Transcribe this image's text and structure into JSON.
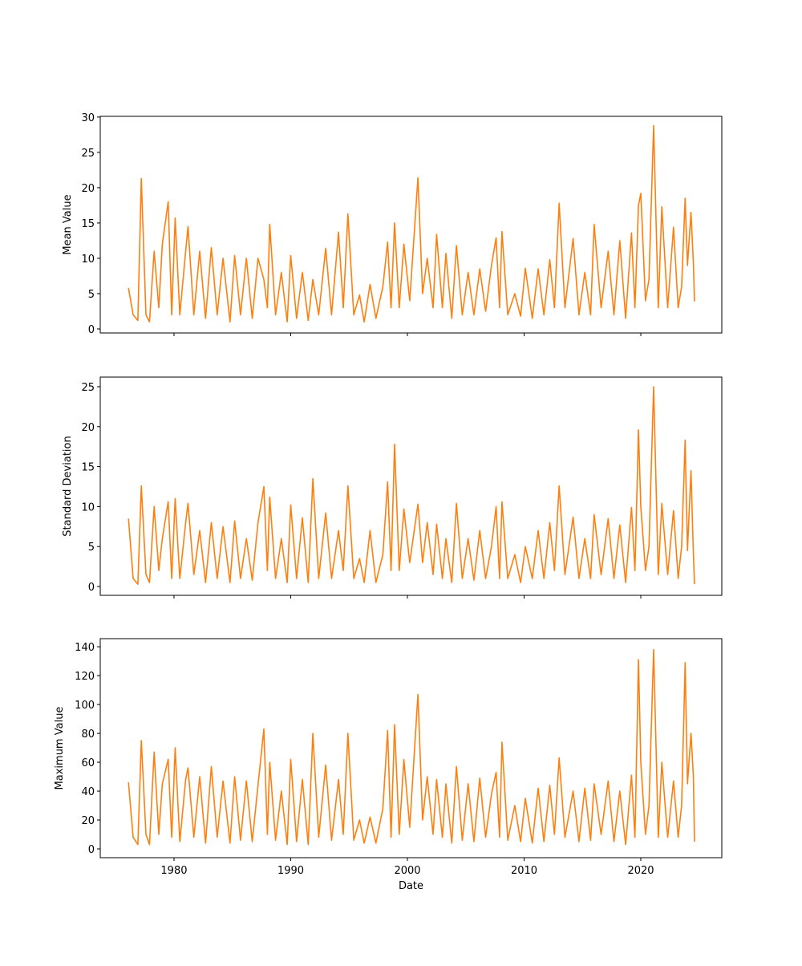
{
  "chart_data": [
    {
      "type": "line",
      "ylabel": "Mean Value",
      "xlim": [
        1973.68,
        2026.94
      ],
      "xticks": [
        1980,
        1990,
        2000,
        2010,
        2020
      ],
      "ylim": [
        -0.57,
        30.1
      ],
      "yticks": [
        0,
        5,
        10,
        15,
        20,
        25,
        30
      ],
      "x": [
        1976.1,
        1976.5,
        1976.9,
        1977.2,
        1977.6,
        1977.9,
        1978.3,
        1978.7,
        1979.0,
        1979.5,
        1979.8,
        1980.1,
        1980.5,
        1981.0,
        1981.2,
        1981.7,
        1982.2,
        1982.7,
        1983.2,
        1983.7,
        1984.2,
        1984.8,
        1985.2,
        1985.7,
        1986.2,
        1986.7,
        1987.2,
        1987.7,
        1988.0,
        1988.2,
        1988.7,
        1989.2,
        1989.7,
        1990.0,
        1990.5,
        1991.0,
        1991.5,
        1991.9,
        1992.4,
        1993.0,
        1993.5,
        1994.1,
        1994.5,
        1994.9,
        1995.4,
        1995.9,
        1996.3,
        1996.8,
        1997.3,
        1997.9,
        1998.3,
        1998.6,
        1998.9,
        1999.3,
        1999.7,
        2000.2,
        2000.9,
        2001.3,
        2001.7,
        2002.2,
        2002.5,
        2003.0,
        2003.3,
        2003.8,
        2004.2,
        2004.7,
        2005.2,
        2005.7,
        2006.2,
        2006.7,
        2007.2,
        2007.6,
        2007.9,
        2008.1,
        2008.6,
        2009.2,
        2009.7,
        2010.1,
        2010.7,
        2011.2,
        2011.7,
        2012.2,
        2012.6,
        2013.0,
        2013.5,
        2014.2,
        2014.7,
        2015.2,
        2015.7,
        2016.0,
        2016.6,
        2017.2,
        2017.7,
        2018.2,
        2018.7,
        2019.2,
        2019.5,
        2019.8,
        2020.0,
        2020.4,
        2020.7,
        2021.1,
        2021.5,
        2021.8,
        2022.3,
        2022.8,
        2023.2,
        2023.5,
        2023.8,
        2024.0,
        2024.3,
        2024.5,
        2024.6
      ],
      "series": [
        {
          "color": "#ff7f0e",
          "values": [
            5.8,
            2,
            1.2,
            21.3,
            2,
            1,
            11,
            3,
            12,
            18,
            2,
            15.7,
            2,
            11,
            14.5,
            2,
            11,
            1.5,
            11.5,
            2,
            10,
            1,
            10.4,
            2,
            10,
            1.5,
            10,
            7,
            3,
            14.8,
            2,
            8,
            1,
            10.4,
            1.5,
            8,
            1.2,
            7,
            2,
            11.4,
            2,
            13.7,
            3,
            16.3,
            2,
            4.8,
            1,
            6.3,
            1.5,
            6,
            12.3,
            3,
            15,
            3,
            12,
            4,
            21.4,
            5,
            10,
            3,
            13.4,
            3,
            10.7,
            1.5,
            11.8,
            2,
            8,
            2,
            8.5,
            2.5,
            9,
            12.9,
            3,
            13.8,
            2,
            5,
            1.8,
            8.6,
            1.5,
            8.5,
            2,
            9.8,
            3,
            17.8,
            3,
            12.8,
            2,
            8,
            2,
            14.8,
            3,
            11,
            2,
            12.5,
            1.5,
            13.6,
            3,
            17.5,
            19.2,
            4,
            7,
            28.8,
            3,
            17.3,
            3,
            14.4,
            3,
            6,
            18.5,
            9,
            16.5,
            9.4,
            3.9
          ]
        }
      ]
    },
    {
      "type": "line",
      "ylabel": "Standard Deviation",
      "xlim": [
        1973.68,
        2026.94
      ],
      "xticks": [
        1980,
        1990,
        2000,
        2010,
        2020
      ],
      "ylim": [
        -1.1,
        26.2
      ],
      "yticks": [
        0,
        5,
        10,
        15,
        20,
        25
      ],
      "x": [
        1976.1,
        1976.5,
        1976.9,
        1977.2,
        1977.6,
        1977.9,
        1978.3,
        1978.7,
        1979.0,
        1979.5,
        1979.8,
        1980.1,
        1980.5,
        1981.0,
        1981.2,
        1981.7,
        1982.2,
        1982.7,
        1983.2,
        1983.7,
        1984.2,
        1984.8,
        1985.2,
        1985.7,
        1986.2,
        1986.7,
        1987.2,
        1987.7,
        1988.0,
        1988.2,
        1988.7,
        1989.2,
        1989.7,
        1990.0,
        1990.5,
        1991.0,
        1991.5,
        1991.9,
        1992.4,
        1993.0,
        1993.5,
        1994.1,
        1994.5,
        1994.9,
        1995.4,
        1995.9,
        1996.3,
        1996.8,
        1997.3,
        1997.9,
        1998.3,
        1998.6,
        1998.9,
        1999.3,
        1999.7,
        2000.2,
        2000.9,
        2001.3,
        2001.7,
        2002.2,
        2002.5,
        2003.0,
        2003.3,
        2003.8,
        2004.2,
        2004.7,
        2005.2,
        2005.7,
        2006.2,
        2006.7,
        2007.2,
        2007.6,
        2007.9,
        2008.1,
        2008.6,
        2009.2,
        2009.7,
        2010.1,
        2010.7,
        2011.2,
        2011.7,
        2012.2,
        2012.6,
        2013.0,
        2013.5,
        2014.2,
        2014.7,
        2015.2,
        2015.7,
        2016.0,
        2016.6,
        2017.2,
        2017.7,
        2018.2,
        2018.7,
        2019.2,
        2019.5,
        2019.8,
        2020.0,
        2020.4,
        2020.7,
        2021.1,
        2021.5,
        2021.8,
        2022.3,
        2022.8,
        2023.2,
        2023.5,
        2023.8,
        2024.0,
        2024.3,
        2024.5,
        2024.6
      ],
      "series": [
        {
          "color": "#ff7f0e",
          "values": [
            8.5,
            1,
            0.3,
            12.6,
            1.5,
            0.5,
            10,
            2,
            6,
            10.6,
            1,
            11,
            1,
            8,
            10.4,
            1.5,
            7,
            0.5,
            8,
            1,
            7.5,
            0.5,
            8.2,
            1,
            6,
            0.8,
            8,
            12.5,
            2,
            11.2,
            1,
            6,
            0.5,
            10.2,
            1,
            8.6,
            0.5,
            13.5,
            1,
            9.2,
            1,
            7,
            2,
            12.6,
            1,
            3.5,
            0.5,
            7,
            0.5,
            4,
            13.1,
            2,
            17.8,
            2,
            9.7,
            3,
            10.3,
            3,
            8,
            1.5,
            7.8,
            1,
            6,
            0.5,
            10.4,
            1,
            6,
            0.8,
            7,
            1,
            5,
            10,
            1,
            10.6,
            1,
            4,
            0.5,
            5,
            1,
            7,
            1,
            8,
            2,
            12.6,
            1.5,
            8.7,
            1,
            6,
            1,
            9,
            1.5,
            8.5,
            1,
            7.7,
            0.5,
            9.9,
            2,
            19.6,
            10,
            2,
            5,
            25,
            1.5,
            10.4,
            1.5,
            9.5,
            1,
            5,
            18.3,
            4.5,
            14.5,
            4.3,
            0.3
          ]
        }
      ]
    },
    {
      "type": "line",
      "ylabel": "Maximum Value",
      "xlabel": "Date",
      "xlim": [
        1973.68,
        2026.94
      ],
      "xticks": [
        1980,
        1990,
        2000,
        2010,
        2020
      ],
      "ylim": [
        -6.1,
        145.6
      ],
      "yticks": [
        0,
        20,
        40,
        60,
        80,
        100,
        120,
        140
      ],
      "x": [
        1976.1,
        1976.5,
        1976.9,
        1977.2,
        1977.6,
        1977.9,
        1978.3,
        1978.7,
        1979.0,
        1979.5,
        1979.8,
        1980.1,
        1980.5,
        1981.0,
        1981.2,
        1981.7,
        1982.2,
        1982.7,
        1983.2,
        1983.7,
        1984.2,
        1984.8,
        1985.2,
        1985.7,
        1986.2,
        1986.7,
        1987.2,
        1987.7,
        1988.0,
        1988.2,
        1988.7,
        1989.2,
        1989.7,
        1990.0,
        1990.5,
        1991.0,
        1991.5,
        1991.9,
        1992.4,
        1993.0,
        1993.5,
        1994.1,
        1994.5,
        1994.9,
        1995.4,
        1995.9,
        1996.3,
        1996.8,
        1997.3,
        1997.9,
        1998.3,
        1998.6,
        1998.9,
        1999.3,
        1999.7,
        2000.2,
        2000.9,
        2001.3,
        2001.7,
        2002.2,
        2002.5,
        2003.0,
        2003.3,
        2003.8,
        2004.2,
        2004.7,
        2005.2,
        2005.7,
        2006.2,
        2006.7,
        2007.2,
        2007.6,
        2007.9,
        2008.1,
        2008.6,
        2009.2,
        2009.7,
        2010.1,
        2010.7,
        2011.2,
        2011.7,
        2012.2,
        2012.6,
        2013.0,
        2013.5,
        2014.2,
        2014.7,
        2015.2,
        2015.7,
        2016.0,
        2016.6,
        2017.2,
        2017.7,
        2018.2,
        2018.7,
        2019.2,
        2019.5,
        2019.8,
        2020.0,
        2020.4,
        2020.7,
        2021.1,
        2021.5,
        2021.8,
        2022.3,
        2022.8,
        2023.2,
        2023.5,
        2023.8,
        2024.0,
        2024.3,
        2024.5,
        2024.6
      ],
      "series": [
        {
          "color": "#ff7f0e",
          "values": [
            46,
            8,
            3,
            75,
            10,
            3,
            67,
            10,
            45,
            62,
            8,
            70,
            5,
            48,
            56,
            8,
            50,
            4,
            57,
            8,
            47,
            4,
            50,
            6,
            47,
            5,
            44,
            83,
            10,
            60,
            6,
            40,
            3,
            62,
            5,
            48,
            3,
            80,
            8,
            58,
            6,
            48,
            10,
            80,
            6,
            20,
            4,
            22,
            4,
            28,
            82,
            8,
            86,
            10,
            62,
            15,
            107,
            20,
            50,
            10,
            48,
            8,
            45,
            4,
            57,
            6,
            45,
            5,
            49,
            8,
            38,
            53,
            8,
            74,
            6,
            30,
            5,
            35,
            4,
            42,
            5,
            44,
            10,
            63,
            8,
            40,
            5,
            42,
            6,
            45,
            10,
            47,
            5,
            40,
            3,
            51,
            8,
            131,
            60,
            10,
            30,
            138,
            8,
            60,
            8,
            47,
            8,
            30,
            129,
            45,
            80,
            51,
            5
          ]
        }
      ]
    }
  ]
}
